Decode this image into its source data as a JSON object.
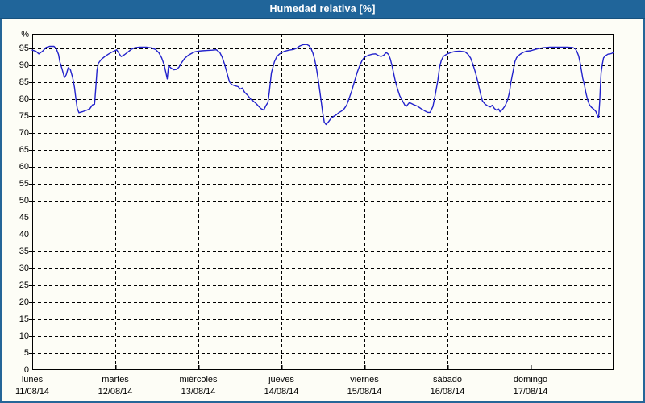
{
  "title": "Humedad relativa [%]",
  "colors": {
    "titlebar_bg": "#20659a",
    "titlebar_text": "#ffffff",
    "outer_border": "#256698",
    "background": "#fdfdf6",
    "grid": "#000000",
    "frame": "#000000",
    "series_line": "#2222cc",
    "tick_text": "#000000"
  },
  "chart_data": {
    "type": "line",
    "title": "Humedad relativa [%]",
    "grid": "dashed",
    "legend": "none",
    "y_axis": {
      "unit": "%",
      "min": 0,
      "max": 99.3,
      "tick_step": 5,
      "tick_labels": [
        "0",
        "5",
        "10",
        "15",
        "20",
        "25",
        "30",
        "35",
        "40",
        "45",
        "50",
        "55",
        "60",
        "65",
        "70",
        "75",
        "80",
        "85",
        "90",
        "95"
      ]
    },
    "x_axis": {
      "hours_total": 168,
      "days": [
        {
          "name": "lunes",
          "date": "11/08/14"
        },
        {
          "name": "martes",
          "date": "12/08/14"
        },
        {
          "name": "miércoles",
          "date": "13/08/14"
        },
        {
          "name": "jueves",
          "date": "14/08/14"
        },
        {
          "name": "viernes",
          "date": "15/08/14"
        },
        {
          "name": "sábado",
          "date": "16/08/14"
        },
        {
          "name": "domingo",
          "date": "17/08/14"
        }
      ]
    },
    "series": [
      {
        "name": "Humedad relativa",
        "color": "#2222cc",
        "points_format": [
          "hours_since_2014-08-11_00:00",
          "percent"
        ],
        "points": [
          [
            0,
            94.5
          ],
          [
            1,
            94.2
          ],
          [
            1.9,
            93.4
          ],
          [
            3,
            94.2
          ],
          [
            4,
            95.3
          ],
          [
            5,
            95.6
          ],
          [
            6.3,
            95.6
          ],
          [
            7,
            94.8
          ],
          [
            7.6,
            93.2
          ],
          [
            8,
            91.0
          ],
          [
            8.6,
            89.0
          ],
          [
            9.3,
            86.4
          ],
          [
            9.8,
            87.2
          ],
          [
            10.4,
            89.3
          ],
          [
            11,
            88.8
          ],
          [
            11.7,
            86.3
          ],
          [
            12.2,
            83.5
          ],
          [
            12.6,
            80.2
          ],
          [
            13,
            77.3
          ],
          [
            13.5,
            76.0
          ],
          [
            14.5,
            76.3
          ],
          [
            15.6,
            76.7
          ],
          [
            16.6,
            77.1
          ],
          [
            17.4,
            78.3
          ],
          [
            18,
            78.5
          ],
          [
            18.4,
            84.0
          ],
          [
            18.7,
            88.5
          ],
          [
            19.1,
            90.6
          ],
          [
            20,
            91.8
          ],
          [
            21,
            92.6
          ],
          [
            22,
            93.3
          ],
          [
            23,
            93.9
          ],
          [
            24,
            94.4
          ],
          [
            24.4,
            94.6
          ],
          [
            25.1,
            93.5
          ],
          [
            25.7,
            92.6
          ],
          [
            26.6,
            93.1
          ],
          [
            27.6,
            93.9
          ],
          [
            28.6,
            94.7
          ],
          [
            29.6,
            95.2
          ],
          [
            31,
            95.4
          ],
          [
            33,
            95.4
          ],
          [
            34.6,
            95.1
          ],
          [
            35.6,
            94.7
          ],
          [
            36.6,
            93.7
          ],
          [
            37.4,
            92.2
          ],
          [
            38.1,
            90.2
          ],
          [
            38.6,
            87.9
          ],
          [
            39,
            86.0
          ],
          [
            39.4,
            89.9
          ],
          [
            40.1,
            89.2
          ],
          [
            40.9,
            88.7
          ],
          [
            41.7,
            88.8
          ],
          [
            42.4,
            89.5
          ],
          [
            43.1,
            90.7
          ],
          [
            44,
            92.0
          ],
          [
            45,
            92.9
          ],
          [
            46,
            93.5
          ],
          [
            47,
            94.0
          ],
          [
            48,
            94.2
          ],
          [
            49,
            94.3
          ],
          [
            50.5,
            94.4
          ],
          [
            52,
            94.5
          ],
          [
            53.2,
            94.6
          ],
          [
            54.2,
            93.8
          ],
          [
            54.9,
            92.4
          ],
          [
            55.6,
            90.3
          ],
          [
            56.3,
            87.7
          ],
          [
            57,
            85.1
          ],
          [
            57.7,
            84.3
          ],
          [
            58.5,
            84.0
          ],
          [
            59.5,
            83.7
          ],
          [
            60.1,
            83.0
          ],
          [
            60.7,
            83.3
          ],
          [
            61.4,
            82.0
          ],
          [
            62.3,
            81.1
          ],
          [
            63.1,
            80.0
          ],
          [
            63.8,
            79.5
          ],
          [
            64.7,
            78.7
          ],
          [
            65.4,
            77.9
          ],
          [
            66.1,
            77.2
          ],
          [
            66.9,
            76.8
          ],
          [
            67.6,
            78.2
          ],
          [
            68.1,
            79.0
          ],
          [
            68.5,
            82.1
          ],
          [
            69.1,
            87.8
          ],
          [
            70,
            91.1
          ],
          [
            70.7,
            92.6
          ],
          [
            71.5,
            93.4
          ],
          [
            72,
            93.7
          ],
          [
            73,
            94.2
          ],
          [
            74.2,
            94.5
          ],
          [
            75.5,
            94.7
          ],
          [
            76.5,
            95.1
          ],
          [
            77.3,
            95.7
          ],
          [
            78.3,
            96.1
          ],
          [
            79.3,
            96.2
          ],
          [
            80,
            95.8
          ],
          [
            80.6,
            94.9
          ],
          [
            81.1,
            93.6
          ],
          [
            81.6,
            91.8
          ],
          [
            82.1,
            89.4
          ],
          [
            82.7,
            85.5
          ],
          [
            83.3,
            80.9
          ],
          [
            83.9,
            76.2
          ],
          [
            84.4,
            73.2
          ],
          [
            84.9,
            72.5
          ],
          [
            85.6,
            73.3
          ],
          [
            86.4,
            74.4
          ],
          [
            87.1,
            74.9
          ],
          [
            87.9,
            75.4
          ],
          [
            88.6,
            76.0
          ],
          [
            89.4,
            76.5
          ],
          [
            90.1,
            77.1
          ],
          [
            90.9,
            78.3
          ],
          [
            91.6,
            80.3
          ],
          [
            92.4,
            82.7
          ],
          [
            93.1,
            85.2
          ],
          [
            93.9,
            87.9
          ],
          [
            94.6,
            89.8
          ],
          [
            95.3,
            91.4
          ],
          [
            96,
            92.4
          ],
          [
            97.2,
            93.0
          ],
          [
            98.3,
            93.3
          ],
          [
            99.2,
            93.4
          ],
          [
            100,
            92.9
          ],
          [
            100.8,
            92.6
          ],
          [
            101.6,
            93.0
          ],
          [
            102.3,
            93.8
          ],
          [
            103,
            93.2
          ],
          [
            103.5,
            91.8
          ],
          [
            104,
            89.8
          ],
          [
            104.4,
            87.8
          ],
          [
            104.9,
            85.5
          ],
          [
            105.5,
            83.2
          ],
          [
            106.2,
            81.0
          ],
          [
            107,
            79.5
          ],
          [
            107.7,
            78.2
          ],
          [
            108.1,
            77.9
          ],
          [
            109,
            79.0
          ],
          [
            110.2,
            78.4
          ],
          [
            111.4,
            77.9
          ],
          [
            112.5,
            77.1
          ],
          [
            113.5,
            76.5
          ],
          [
            114.3,
            76.1
          ],
          [
            115,
            76.1
          ],
          [
            115.8,
            77.9
          ],
          [
            116.5,
            81.5
          ],
          [
            117.2,
            85.5
          ],
          [
            117.7,
            89.3
          ],
          [
            118.2,
            91.4
          ],
          [
            118.8,
            92.6
          ],
          [
            119.5,
            93.1
          ],
          [
            120,
            93.4
          ],
          [
            121,
            93.8
          ],
          [
            122.2,
            94.1
          ],
          [
            123.6,
            94.2
          ],
          [
            125.1,
            94.0
          ],
          [
            125.9,
            93.3
          ],
          [
            126.7,
            92.1
          ],
          [
            127.4,
            90.1
          ],
          [
            128.1,
            87.8
          ],
          [
            128.8,
            85.0
          ],
          [
            129.5,
            81.8
          ],
          [
            130.1,
            79.5
          ],
          [
            130.8,
            78.6
          ],
          [
            131.6,
            78.0
          ],
          [
            132.4,
            77.7
          ],
          [
            132.9,
            78.2
          ],
          [
            133.6,
            77.2
          ],
          [
            134.3,
            76.7
          ],
          [
            134.8,
            77.1
          ],
          [
            135.2,
            76.3
          ],
          [
            136,
            77.1
          ],
          [
            136.7,
            78.1
          ],
          [
            137.4,
            79.9
          ],
          [
            137.9,
            81.9
          ],
          [
            138.3,
            84.7
          ],
          [
            138.7,
            87.0
          ],
          [
            139.1,
            89.0
          ],
          [
            139.5,
            91.1
          ],
          [
            140,
            92.3
          ],
          [
            140.9,
            93.2
          ],
          [
            141.8,
            93.8
          ],
          [
            142.9,
            94.2
          ],
          [
            144,
            94.3
          ],
          [
            145,
            94.6
          ],
          [
            146.1,
            94.9
          ],
          [
            147.6,
            95.2
          ],
          [
            149.6,
            95.4
          ],
          [
            152,
            95.4
          ],
          [
            154.6,
            95.4
          ],
          [
            156.1,
            95.3
          ],
          [
            156.9,
            95.0
          ],
          [
            157.4,
            94.1
          ],
          [
            157.9,
            92.8
          ],
          [
            158.3,
            91.0
          ],
          [
            158.7,
            88.6
          ],
          [
            159.1,
            86.2
          ],
          [
            159.6,
            84.2
          ],
          [
            160,
            81.9
          ],
          [
            160.5,
            79.9
          ],
          [
            161,
            78.4
          ],
          [
            161.6,
            77.6
          ],
          [
            162.3,
            77.0
          ],
          [
            162.9,
            76.4
          ],
          [
            163.3,
            75.2
          ],
          [
            163.7,
            74.5
          ],
          [
            164,
            79.1
          ],
          [
            164.2,
            83.9
          ],
          [
            164.4,
            87.9
          ],
          [
            164.8,
            90.6
          ],
          [
            165.1,
            92.2
          ],
          [
            165.6,
            92.8
          ],
          [
            166.4,
            93.3
          ],
          [
            167.4,
            93.5
          ],
          [
            168,
            93.8
          ]
        ]
      }
    ]
  }
}
